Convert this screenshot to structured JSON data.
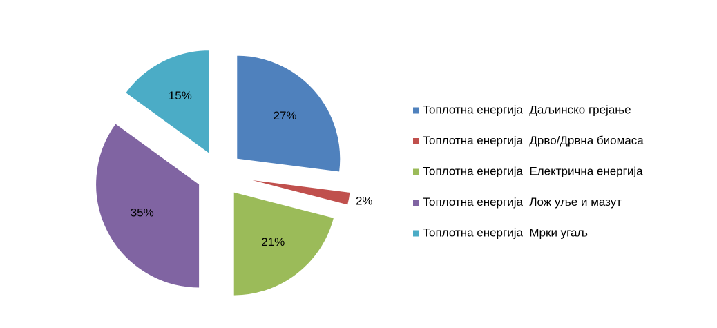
{
  "chart_data": {
    "type": "pie",
    "categories": [
      "Топлотна енергија  Даљинско грејање",
      "Топлотна енергија  Дрво/Дрвна биомаса",
      "Топлотна енергија  Електрична енергија",
      "Топлотна енергија  Лож уље и мазут",
      "Топлотна енергија  Мрки угаљ"
    ],
    "values": [
      27,
      2,
      21,
      35,
      15
    ],
    "value_labels": [
      "27%",
      "2%",
      "21%",
      "35%",
      "15%"
    ],
    "colors": [
      "#4f81bd",
      "#c0504d",
      "#9bbb59",
      "#8064a2",
      "#4bacc6"
    ],
    "legend": "right"
  }
}
